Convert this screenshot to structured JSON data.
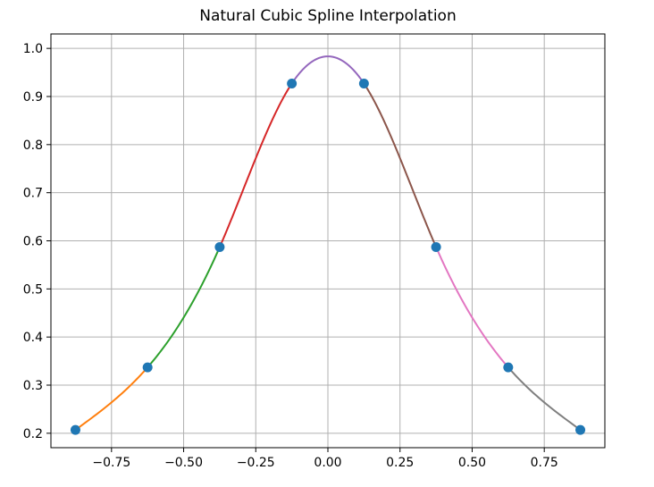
{
  "chart_data": {
    "type": "line",
    "title": "Natural Cubic Spline Interpolation",
    "xlabel": "",
    "ylabel": "",
    "xlim": [
      -0.96,
      0.96
    ],
    "ylim": [
      0.17,
      1.03
    ],
    "grid": true,
    "x_ticks": [
      -0.75,
      -0.5,
      -0.25,
      0.0,
      0.25,
      0.5,
      0.75
    ],
    "x_tick_labels": [
      "−0.75",
      "−0.50",
      "−0.25",
      "0.00",
      "0.25",
      "0.50",
      "0.75"
    ],
    "y_ticks": [
      0.2,
      0.3,
      0.4,
      0.5,
      0.6,
      0.7,
      0.8,
      0.9,
      1.0
    ],
    "y_tick_labels": [
      "0.2",
      "0.3",
      "0.4",
      "0.5",
      "0.6",
      "0.7",
      "0.8",
      "0.9",
      "1.0"
    ],
    "knots": {
      "x": [
        -0.875,
        -0.625,
        -0.375,
        -0.125,
        0.125,
        0.375,
        0.625,
        0.875
      ],
      "y": [
        0.207,
        0.337,
        0.587,
        0.927,
        0.927,
        0.587,
        0.337,
        0.207
      ],
      "color": "#1f77b4"
    },
    "segment_colors": [
      "#ff7f0e",
      "#2ca02c",
      "#d62728",
      "#9467bd",
      "#8c564b",
      "#e377c2",
      "#7f7f7f"
    ],
    "peak": {
      "x": 0.0,
      "y": 0.985
    }
  }
}
